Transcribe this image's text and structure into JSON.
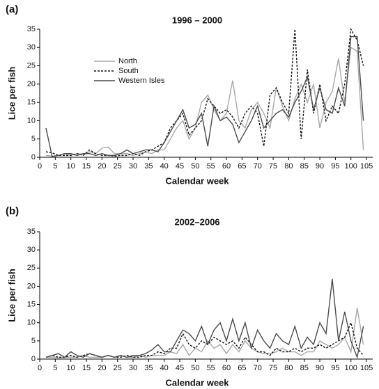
{
  "chart_data": [
    {
      "type": "line",
      "panel_label": "(a)",
      "title": "1996 – 2000",
      "x_label": "Calendar week",
      "y_label": "Lice per fish",
      "x": [
        2,
        4,
        6,
        8,
        10,
        12,
        14,
        16,
        18,
        20,
        22,
        24,
        26,
        28,
        30,
        32,
        34,
        36,
        38,
        40,
        42,
        44,
        46,
        48,
        50,
        52,
        54,
        56,
        58,
        60,
        62,
        64,
        66,
        68,
        70,
        72,
        74,
        76,
        78,
        80,
        82,
        84,
        86,
        88,
        90,
        92,
        94,
        96,
        98,
        100,
        102,
        104
      ],
      "series": [
        {
          "name": "North",
          "color": "#a8a8a8",
          "dash": "none",
          "values": [
            0.5,
            0.3,
            0.5,
            1,
            0.5,
            1,
            0.8,
            1.5,
            1,
            2.5,
            2.8,
            1,
            1,
            1,
            0.5,
            1,
            1.5,
            1,
            2,
            2,
            5,
            8,
            10,
            5,
            8,
            15,
            17,
            13,
            10,
            12,
            21,
            10,
            8,
            13,
            15,
            12,
            8,
            19,
            14,
            10,
            16,
            20,
            15,
            20,
            8,
            15,
            18,
            27,
            15,
            30,
            29,
            2
          ]
        },
        {
          "name": "South",
          "color": "#111111",
          "dash": "3,2",
          "values": [
            1.5,
            1.2,
            0.5,
            0.5,
            0.5,
            1,
            0.5,
            2,
            1,
            0.5,
            0.5,
            0.3,
            0.5,
            0.5,
            1,
            0.5,
            1.5,
            2,
            3,
            4,
            8,
            10,
            12,
            6,
            8,
            10,
            16,
            14,
            12,
            13,
            11,
            8,
            12,
            14,
            12,
            3,
            17,
            19,
            15,
            12,
            35,
            5,
            24,
            12,
            20,
            10,
            14,
            12,
            20,
            35,
            32,
            25
          ]
        },
        {
          "name": "Western Isles",
          "color": "#4a4a4a",
          "dash": "none",
          "values": [
            8,
            0.2,
            0.5,
            1,
            1,
            0.5,
            1,
            1,
            0.5,
            1,
            0.5,
            0.5,
            1,
            2,
            1,
            1.5,
            2,
            2,
            1.5,
            4,
            7,
            10,
            13,
            8,
            9,
            12,
            3,
            14,
            10,
            11,
            9,
            4,
            7,
            10,
            14,
            8,
            10,
            12,
            13,
            11,
            15,
            18,
            22,
            13,
            19,
            13,
            12,
            19,
            14,
            33,
            33,
            10
          ]
        }
      ],
      "xlim": [
        0,
        107
      ],
      "ylim": [
        0,
        35
      ],
      "xticks": [
        0,
        5,
        10,
        15,
        20,
        25,
        30,
        35,
        40,
        45,
        50,
        55,
        60,
        65,
        70,
        75,
        80,
        85,
        90,
        95,
        100,
        105
      ],
      "yticks": [
        0,
        5,
        10,
        15,
        20,
        25,
        30,
        35
      ],
      "legend": "upper left"
    },
    {
      "type": "line",
      "panel_label": "(b)",
      "title": "2002–2006",
      "x_label": "Calendar week",
      "y_label": "Lice per fish",
      "x": [
        2,
        4,
        6,
        8,
        10,
        12,
        14,
        16,
        18,
        20,
        22,
        24,
        26,
        28,
        30,
        32,
        34,
        36,
        38,
        40,
        42,
        44,
        46,
        48,
        50,
        52,
        54,
        56,
        58,
        60,
        62,
        64,
        66,
        68,
        70,
        72,
        74,
        76,
        78,
        80,
        82,
        84,
        86,
        88,
        90,
        92,
        94,
        96,
        98,
        100,
        102,
        104
      ],
      "series": [
        {
          "color": "#a8a8a8",
          "dash": "none",
          "values": [
            0.5,
            0.5,
            0.3,
            0.5,
            0.5,
            0.5,
            1,
            0.5,
            0.5,
            0.5,
            1,
            0.5,
            1,
            0.5,
            0.5,
            1,
            0.5,
            1,
            1,
            1,
            2,
            1.5,
            4,
            1,
            3,
            2,
            5,
            3,
            4,
            1.5,
            4,
            2,
            5,
            3,
            2,
            1.5,
            1.5,
            2,
            3,
            2,
            2,
            1,
            2,
            2,
            5,
            4,
            3,
            4,
            6,
            2,
            14,
            4
          ]
        },
        {
          "color": "#111111",
          "dash": "3,2",
          "values": [
            0.5,
            1,
            0.5,
            0.5,
            1,
            0.5,
            1,
            1.5,
            1,
            0.5,
            1,
            0.5,
            0.5,
            1,
            0.5,
            0.5,
            1,
            1,
            2,
            1.5,
            3,
            3,
            7,
            4,
            3,
            5,
            4,
            6,
            5,
            4,
            5,
            3,
            6,
            4,
            2,
            2,
            1,
            3,
            2,
            2,
            3,
            2,
            3,
            3,
            4,
            3,
            4,
            5,
            6,
            10,
            3,
            1
          ]
        },
        {
          "color": "#4a4a4a",
          "dash": "none",
          "values": [
            0.5,
            1,
            1.5,
            0.5,
            2,
            1,
            0.5,
            1.5,
            1,
            0.5,
            1,
            0.5,
            1,
            0.5,
            1,
            1,
            1.5,
            2.5,
            4,
            2,
            2,
            5,
            8,
            7,
            5,
            9,
            4,
            8,
            10,
            5,
            11,
            5,
            10,
            3,
            8,
            5,
            3,
            7,
            5,
            4,
            9,
            3,
            6,
            4,
            10,
            7,
            22,
            5,
            13,
            5,
            0.5,
            9
          ]
        }
      ],
      "xlim": [
        0,
        107
      ],
      "ylim": [
        0,
        35
      ],
      "xticks": [
        0,
        5,
        10,
        15,
        20,
        25,
        30,
        35,
        40,
        45,
        50,
        55,
        60,
        65,
        70,
        75,
        80,
        85,
        90,
        95,
        100,
        105
      ],
      "yticks": [
        0,
        5,
        10,
        15,
        20,
        25,
        30,
        35
      ]
    }
  ]
}
